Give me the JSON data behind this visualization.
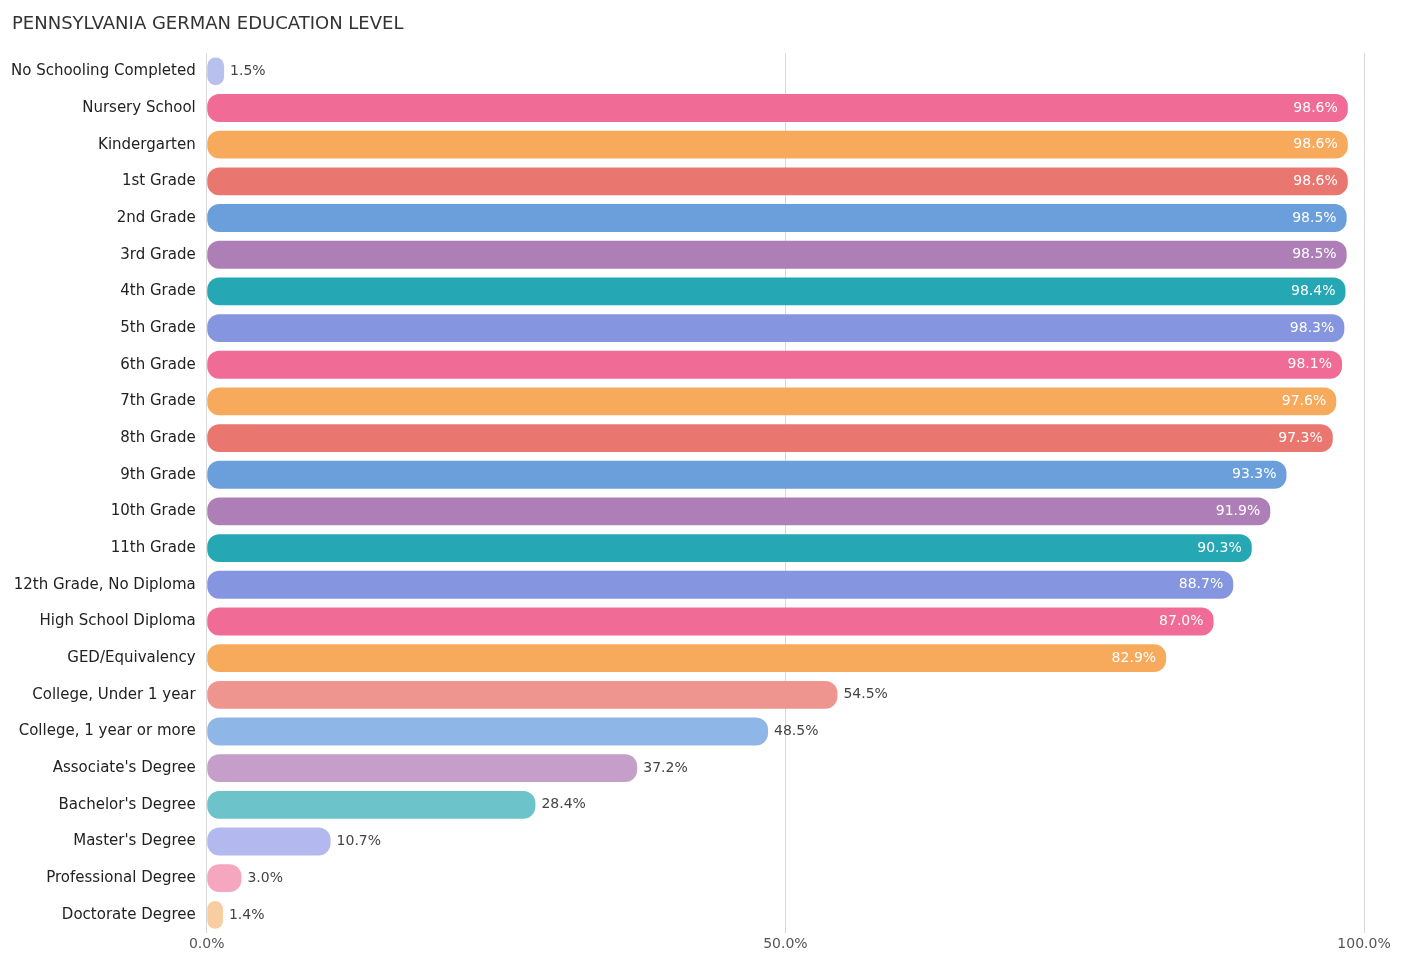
{
  "chart_data": {
    "type": "bar",
    "orientation": "horizontal",
    "title": "PENNSYLVANIA GERMAN EDUCATION LEVEL",
    "categories": [
      "No Schooling Completed",
      "Nursery School",
      "Kindergarten",
      "1st Grade",
      "2nd Grade",
      "3rd Grade",
      "4th Grade",
      "5th Grade",
      "6th Grade",
      "7th Grade",
      "8th Grade",
      "9th Grade",
      "10th Grade",
      "11th Grade",
      "12th Grade, No Diploma",
      "High School Diploma",
      "GED/Equivalency",
      "College, Under 1 year",
      "College, 1 year or more",
      "Associate's Degree",
      "Bachelor's Degree",
      "Master's Degree",
      "Professional Degree",
      "Doctorate Degree"
    ],
    "values": [
      1.5,
      98.6,
      98.6,
      98.6,
      98.5,
      98.5,
      98.4,
      98.3,
      98.1,
      97.6,
      97.3,
      93.3,
      91.9,
      90.3,
      88.7,
      87.0,
      82.9,
      54.5,
      48.5,
      37.2,
      28.4,
      10.7,
      3.0,
      1.4
    ],
    "value_labels": [
      "1.5%",
      "98.6%",
      "98.6%",
      "98.6%",
      "98.5%",
      "98.5%",
      "98.4%",
      "98.3%",
      "98.1%",
      "97.6%",
      "97.3%",
      "93.3%",
      "91.9%",
      "90.3%",
      "88.7%",
      "87.0%",
      "82.9%",
      "54.5%",
      "48.5%",
      "37.2%",
      "28.4%",
      "10.7%",
      "3.0%",
      "1.4%"
    ],
    "colors": [
      "#b8c0ee",
      "#f06b95",
      "#f7a95c",
      "#e9776f",
      "#6a9fdc",
      "#ae7fb6",
      "#25a8b4",
      "#8595e0",
      "#f06b95",
      "#f7a95c",
      "#e9776f",
      "#6a9fdc",
      "#ae7fb6",
      "#25a8b4",
      "#8595e0",
      "#f06b95",
      "#f7a95c",
      "#ee9590",
      "#8eb6e6",
      "#c59ec9",
      "#6cc3c9",
      "#b3b9ee",
      "#f6a7c0",
      "#f9cda2"
    ],
    "xlim": [
      0,
      100
    ],
    "xticks": [
      {
        "value": 0,
        "label": "0.0%"
      },
      {
        "value": 50,
        "label": "50.0%"
      },
      {
        "value": 100,
        "label": "100.0%"
      }
    ],
    "grid": "x"
  }
}
